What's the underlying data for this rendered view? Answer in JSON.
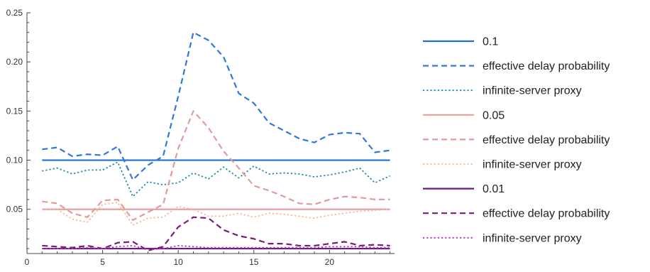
{
  "chart_data": {
    "type": "line",
    "title": "",
    "xlabel": "",
    "ylabel": "",
    "xlim": [
      0,
      24.3
    ],
    "ylim": [
      0.005,
      0.25
    ],
    "x_ticks": [
      0,
      5,
      10,
      15,
      20
    ],
    "y_ticks": [
      0.05,
      0.1,
      0.15,
      0.2,
      0.25
    ],
    "x_tick_labels": [
      "0",
      "5",
      "10",
      "15",
      "20"
    ],
    "y_tick_labels": [
      "0.05",
      "0.10",
      "0.15",
      "0.20",
      "0.25"
    ],
    "x": [
      1,
      2,
      3,
      4,
      5,
      6,
      7,
      8,
      9,
      10,
      11,
      12,
      13,
      14,
      15,
      16,
      17,
      18,
      19,
      20,
      21,
      22,
      23,
      24
    ],
    "grid": false,
    "legend_position": "right",
    "series": [
      {
        "name": "0.1",
        "color": "#1f6fd1",
        "style": "solid",
        "values": [
          0.1,
          0.1,
          0.1,
          0.1,
          0.1,
          0.1,
          0.1,
          0.1,
          0.1,
          0.1,
          0.1,
          0.1,
          0.1,
          0.1,
          0.1,
          0.1,
          0.1,
          0.1,
          0.1,
          0.1,
          0.1,
          0.1,
          0.1,
          0.1
        ]
      },
      {
        "name": "effective delay probability",
        "color": "#2d78e0",
        "style": "dashed",
        "values": [
          0.111,
          0.113,
          0.104,
          0.106,
          0.105,
          0.114,
          0.08,
          0.095,
          0.104,
          0.165,
          0.23,
          0.222,
          0.205,
          0.168,
          0.158,
          0.138,
          0.13,
          0.122,
          0.118,
          0.126,
          0.128,
          0.127,
          0.108,
          0.11
        ]
      },
      {
        "name": "infinite-server proxy",
        "color": "#1a8aaa",
        "style": "dotted",
        "values": [
          0.089,
          0.092,
          0.086,
          0.09,
          0.09,
          0.098,
          0.063,
          0.078,
          0.075,
          0.077,
          0.087,
          0.081,
          0.093,
          0.082,
          0.094,
          0.086,
          0.087,
          0.086,
          0.083,
          0.085,
          0.088,
          0.092,
          0.077,
          0.084
        ]
      },
      {
        "name": "0.05",
        "color": "#e5a0a0",
        "style": "solid",
        "values": [
          0.05,
          0.05,
          0.05,
          0.05,
          0.05,
          0.05,
          0.05,
          0.05,
          0.05,
          0.05,
          0.05,
          0.05,
          0.05,
          0.05,
          0.05,
          0.05,
          0.05,
          0.05,
          0.05,
          0.05,
          0.05,
          0.05,
          0.05,
          0.05
        ]
      },
      {
        "name": "effective delay probability",
        "color": "#e39a9a",
        "style": "dashed",
        "values": [
          0.058,
          0.056,
          0.046,
          0.042,
          0.059,
          0.06,
          0.039,
          0.047,
          0.055,
          0.112,
          0.15,
          0.133,
          0.109,
          0.092,
          0.074,
          0.069,
          0.063,
          0.056,
          0.055,
          0.06,
          0.063,
          0.062,
          0.06,
          0.06
        ]
      },
      {
        "name": "infinite-server proxy",
        "color": "#f5bb8f",
        "style": "dotted",
        "values": [
          0.05,
          0.05,
          0.04,
          0.037,
          0.055,
          0.057,
          0.034,
          0.041,
          0.042,
          0.053,
          0.05,
          0.043,
          0.043,
          0.046,
          0.042,
          0.046,
          0.045,
          0.043,
          0.041,
          0.044,
          0.046,
          0.048,
          0.049,
          0.05
        ]
      },
      {
        "name": "0.01",
        "color": "#6b1b85",
        "style": "solid",
        "values": [
          0.01,
          0.01,
          0.01,
          0.01,
          0.01,
          0.01,
          0.01,
          0.01,
          0.01,
          0.01,
          0.01,
          0.01,
          0.01,
          0.01,
          0.01,
          0.01,
          0.01,
          0.01,
          0.01,
          0.01,
          0.01,
          0.01,
          0.01,
          0.01
        ]
      },
      {
        "name": "effective delay probability",
        "color": "#7a1c75",
        "style": "dashed",
        "values": [
          0.013,
          0.012,
          0.011,
          0.013,
          0.01,
          0.016,
          0.017,
          0.008,
          0.012,
          0.032,
          0.042,
          0.041,
          0.029,
          0.023,
          0.02,
          0.015,
          0.015,
          0.013,
          0.013,
          0.015,
          0.017,
          0.013,
          0.014,
          0.013
        ]
      },
      {
        "name": "infinite-server proxy",
        "color": "#b030c0",
        "style": "dotted",
        "values": [
          0.01,
          0.01,
          0.01,
          0.011,
          0.01,
          0.012,
          0.013,
          0.009,
          0.01,
          0.013,
          0.012,
          0.011,
          0.011,
          0.011,
          0.011,
          0.011,
          0.011,
          0.011,
          0.011,
          0.012,
          0.012,
          0.012,
          0.011,
          0.011
        ]
      }
    ]
  }
}
